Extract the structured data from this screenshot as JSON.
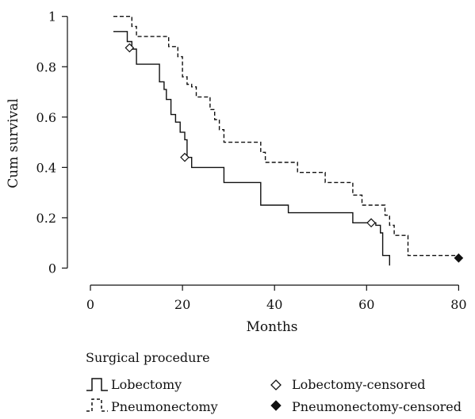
{
  "chart_data": {
    "type": "line",
    "subtype": "kaplan-meier step curve",
    "xlabel": "Months",
    "ylabel": "Cum survival",
    "xlim": [
      -5,
      82
    ],
    "ylim": [
      -0.03,
      1.04
    ],
    "xticks": [
      0,
      20,
      40,
      60,
      80
    ],
    "yticks": [
      0,
      0.2,
      0.4,
      0.6,
      0.8,
      1
    ],
    "xtick_labels": [
      "0",
      "20",
      "40",
      "60",
      "80"
    ],
    "ytick_labels": [
      "0",
      "0.2",
      "0.4",
      "0.6",
      "0.8",
      "1"
    ],
    "grid": false,
    "legend_title": "Surgical procedure",
    "legend_position": "bottom",
    "series": [
      {
        "name": "Lobectomy",
        "line_style": "solid",
        "color": "#111111",
        "steps": [
          [
            5,
            0.94
          ],
          [
            8,
            0.9
          ],
          [
            9,
            0.87
          ],
          [
            10,
            0.81
          ],
          [
            15,
            0.74
          ],
          [
            16,
            0.71
          ],
          [
            16.5,
            0.67
          ],
          [
            17.5,
            0.61
          ],
          [
            18.5,
            0.58
          ],
          [
            19.5,
            0.54
          ],
          [
            20.5,
            0.51
          ],
          [
            21,
            0.44
          ],
          [
            22,
            0.4
          ],
          [
            29,
            0.34
          ],
          [
            37,
            0.25
          ],
          [
            43,
            0.22
          ],
          [
            57,
            0.18
          ],
          [
            62,
            0.17
          ],
          [
            63,
            0.14
          ],
          [
            63.5,
            0.05
          ],
          [
            65,
            0.01
          ]
        ],
        "censored": [
          [
            8.5,
            0.875
          ],
          [
            20.5,
            0.44
          ],
          [
            61,
            0.18
          ]
        ],
        "censored_label": "Lobectomy-censored",
        "censored_marker": "open-diamond"
      },
      {
        "name": "Pneumonectomy",
        "line_style": "dashed",
        "color": "#111111",
        "steps": [
          [
            5,
            1.0
          ],
          [
            9,
            0.96
          ],
          [
            10,
            0.92
          ],
          [
            17,
            0.88
          ],
          [
            19,
            0.84
          ],
          [
            20,
            0.76
          ],
          [
            21,
            0.73
          ],
          [
            22,
            0.72
          ],
          [
            23,
            0.68
          ],
          [
            26,
            0.63
          ],
          [
            27,
            0.59
          ],
          [
            28,
            0.55
          ],
          [
            29,
            0.5
          ],
          [
            37,
            0.46
          ],
          [
            38,
            0.42
          ],
          [
            45,
            0.38
          ],
          [
            51,
            0.34
          ],
          [
            57,
            0.29
          ],
          [
            59,
            0.25
          ],
          [
            64,
            0.21
          ],
          [
            65,
            0.17
          ],
          [
            66,
            0.13
          ],
          [
            69,
            0.05
          ],
          [
            80,
            0.04
          ]
        ],
        "censored": [
          [
            80,
            0.04
          ]
        ],
        "censored_label": "Pneumonectomy-censored",
        "censored_marker": "filled-diamond"
      }
    ]
  }
}
